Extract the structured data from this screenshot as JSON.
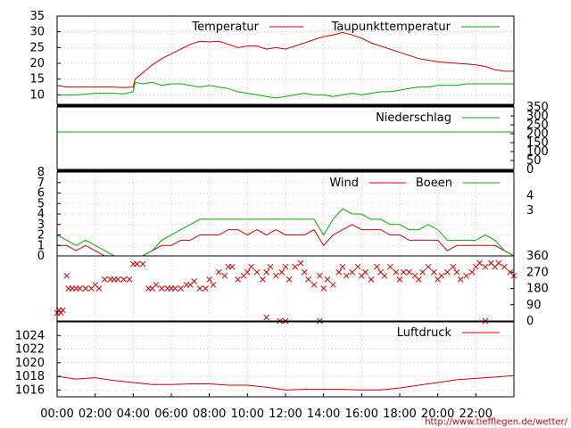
{
  "colors": {
    "red": "#cc0000",
    "green": "#00aa00",
    "grid": "#a0a0a0",
    "frame": "#000000",
    "url": "#cc0000"
  },
  "footer": {
    "url": "http://www.tiefflegen.de/wetter/"
  },
  "x_axis": {
    "ticks": [
      "00:00",
      "02:00",
      "04:00",
      "06:00",
      "08:00",
      "10:00",
      "12:00",
      "14:00",
      "16:00",
      "18:00",
      "20:00",
      "22:00"
    ],
    "hours": [
      0,
      2,
      4,
      6,
      8,
      10,
      12,
      14,
      16,
      18,
      20,
      22
    ],
    "range": [
      0,
      24
    ]
  },
  "chart_data": [
    {
      "id": "temp",
      "type": "line",
      "ylim": [
        7,
        35
      ],
      "yticks": [
        10,
        15,
        20,
        25,
        30,
        35
      ],
      "grid": true,
      "legend_position": "top-right",
      "series": [
        {
          "name": "Temperatur",
          "color": "red",
          "x": [
            0,
            0.5,
            1,
            2,
            3,
            3.5,
            4,
            4.1,
            4.5,
            5,
            5.5,
            6,
            6.5,
            7,
            7.5,
            8,
            8.5,
            9,
            9.5,
            10,
            10.5,
            11,
            11.5,
            12,
            12.5,
            13,
            13.5,
            14,
            14.5,
            15,
            15.5,
            16,
            16.5,
            17,
            17.5,
            18,
            18.5,
            19,
            19.5,
            20,
            20.5,
            21,
            21.5,
            22,
            22.5,
            23,
            23.5,
            24
          ],
          "y": [
            13,
            12.5,
            12.5,
            12.5,
            12.5,
            12.3,
            12.5,
            15,
            17,
            19.5,
            21.5,
            23,
            24.5,
            26,
            27,
            26.8,
            27,
            26,
            25,
            25.5,
            25.5,
            24.5,
            25,
            24.5,
            25.5,
            26.5,
            27.5,
            28.5,
            29,
            29.8,
            29,
            28,
            26.5,
            25.5,
            24.5,
            23.5,
            22.5,
            21.5,
            21,
            20.5,
            20.2,
            20,
            19.8,
            19.5,
            19,
            18,
            17.5,
            17.5
          ]
        },
        {
          "name": "Taupunkttemperatur",
          "color": "green",
          "x": [
            0,
            1,
            2,
            3,
            3.5,
            4,
            4.1,
            4.5,
            5,
            5.5,
            6,
            6.5,
            7,
            7.5,
            8,
            8.5,
            9,
            9.5,
            10,
            10.5,
            11,
            11.5,
            12,
            12.5,
            13,
            13.5,
            14,
            14.5,
            15,
            15.5,
            16,
            16.5,
            17,
            17.5,
            18,
            18.5,
            19,
            19.5,
            20,
            20.5,
            21,
            21.5,
            22,
            22.5,
            23,
            23.5,
            24
          ],
          "y": [
            10,
            10,
            10.5,
            10.5,
            10.3,
            11,
            14,
            13.5,
            14,
            13,
            13.5,
            13.5,
            13,
            12.5,
            13,
            12.5,
            12,
            11,
            10.5,
            10,
            9.5,
            9,
            9.5,
            10,
            10.5,
            10,
            10,
            9.5,
            10,
            10.5,
            10,
            10.5,
            11,
            11,
            11.5,
            12,
            12.5,
            12.5,
            13,
            13,
            13,
            13.5,
            13.5,
            13.5,
            13.5,
            13.5,
            13.5
          ]
        }
      ]
    },
    {
      "id": "rain",
      "type": "line",
      "ylim": [
        0,
        350
      ],
      "yticks": [
        0,
        50,
        100,
        150,
        200,
        250,
        300,
        350
      ],
      "axis_side": "right",
      "legend_position": "top-right",
      "series": [
        {
          "name": "Niederschlag",
          "color": "green",
          "x": [
            0,
            24
          ],
          "y": [
            210,
            210
          ]
        }
      ]
    },
    {
      "id": "wind",
      "type": "line",
      "ylim": [
        0,
        8
      ],
      "yticks": [
        0,
        1,
        2,
        3,
        4,
        5,
        6,
        7,
        8
      ],
      "right_ticks": [
        "3",
        "4"
      ],
      "grid": true,
      "legend_position": "top-right",
      "series": [
        {
          "name": "Wind",
          "color": "red",
          "x": [
            0,
            0.5,
            1,
            1.5,
            2,
            2.5,
            3,
            3.5,
            4,
            4.5,
            5,
            5.5,
            6,
            6.5,
            7,
            7.5,
            8,
            8.5,
            9,
            9.5,
            10,
            10.5,
            11,
            11.5,
            12,
            12.5,
            13,
            13.5,
            14,
            14.5,
            15,
            15.5,
            16,
            16.5,
            17,
            17.5,
            18,
            18.5,
            19,
            19.5,
            20,
            20.5,
            21,
            21.5,
            22,
            22.5,
            23,
            23.5,
            24
          ],
          "y": [
            1,
            1,
            0.5,
            1,
            0.5,
            0,
            0,
            0,
            0,
            0,
            0.5,
            1,
            1,
            1.5,
            1.5,
            2,
            2,
            2,
            2.5,
            2.5,
            2,
            2.5,
            2,
            2.5,
            2,
            2,
            2,
            2.5,
            1,
            2,
            2.5,
            3,
            2.5,
            2.5,
            2.5,
            2,
            2,
            1.5,
            1.5,
            1.5,
            1.5,
            0.5,
            1,
            1,
            1,
            1,
            1,
            0.5,
            0
          ]
        },
        {
          "name": "Boeen",
          "color": "green",
          "x": [
            0,
            0.5,
            1,
            1.5,
            2,
            2.5,
            3,
            3.5,
            4,
            4.5,
            5,
            5.5,
            6,
            6.5,
            7,
            7.5,
            8,
            8.5,
            9,
            9.5,
            10,
            10.5,
            11,
            11.5,
            12,
            12.5,
            13,
            13.5,
            14,
            14.5,
            15,
            15.5,
            16,
            16.5,
            17,
            17.5,
            18,
            18.5,
            19,
            19.5,
            20,
            20.5,
            21,
            21.5,
            22,
            22.5,
            23,
            23.5,
            24
          ],
          "y": [
            2,
            1.5,
            1,
            1.5,
            1,
            0.5,
            0,
            0,
            0,
            0,
            0.5,
            1.5,
            2,
            2.5,
            3,
            3.5,
            3.5,
            3.5,
            3.5,
            3.5,
            3.5,
            3.5,
            3.5,
            3.5,
            3.5,
            3.5,
            3.5,
            3.5,
            2,
            3.5,
            4.5,
            4,
            4,
            3.5,
            3.5,
            3,
            3,
            2.5,
            2.5,
            3,
            2.5,
            1.5,
            1.5,
            1.5,
            1.5,
            2,
            1.5,
            0.5,
            0
          ]
        }
      ]
    },
    {
      "id": "direction",
      "type": "scatter",
      "ylim": [
        0,
        360
      ],
      "yticks": [
        0,
        90,
        180,
        270,
        360
      ],
      "axis_side": "right",
      "marker": "x",
      "series": [
        {
          "color": "red",
          "x": [
            0,
            0.1,
            0.2,
            0.3,
            0.5,
            0.6,
            0.8,
            1,
            1.2,
            1.5,
            1.8,
            2,
            2.2,
            2.5,
            2.8,
            3,
            3.2,
            3.5,
            3.8,
            4,
            4.2,
            4.5,
            4.8,
            5,
            5.2,
            5.5,
            5.8,
            6,
            6.2,
            6.5,
            6.8,
            7,
            7.2,
            7.5,
            7.8,
            8,
            8.2,
            8.5,
            8.8,
            9,
            9.2,
            9.5,
            9.8,
            10,
            10.2,
            10.5,
            10.8,
            11,
            11.2,
            11.5,
            11.8,
            12,
            12.2,
            12.5,
            12.8,
            13,
            13.2,
            13.5,
            13.8,
            14,
            14.2,
            14.5,
            14.8,
            15,
            15.2,
            15.5,
            15.8,
            16,
            16.2,
            16.5,
            16.8,
            17,
            17.2,
            17.5,
            17.8,
            18,
            18.2,
            18.5,
            18.8,
            19,
            19.2,
            19.5,
            19.8,
            20,
            20.2,
            20.5,
            20.8,
            21,
            21.2,
            21.5,
            21.8,
            22,
            22.2,
            22.5,
            22.8,
            23,
            23.2,
            23.5,
            23.8,
            24,
            11,
            11.7,
            12,
            13.8,
            22.5
          ],
          "y": [
            45,
            60,
            45,
            60,
            250,
            180,
            180,
            180,
            180,
            180,
            180,
            200,
            180,
            230,
            230,
            230,
            230,
            230,
            230,
            315,
            315,
            315,
            180,
            180,
            200,
            180,
            180,
            180,
            180,
            180,
            200,
            200,
            220,
            180,
            180,
            230,
            200,
            270,
            250,
            300,
            300,
            230,
            250,
            270,
            300,
            270,
            230,
            270,
            300,
            250,
            270,
            300,
            230,
            300,
            320,
            270,
            230,
            200,
            250,
            180,
            230,
            200,
            270,
            300,
            250,
            270,
            300,
            250,
            270,
            230,
            300,
            270,
            250,
            300,
            270,
            230,
            270,
            270,
            250,
            230,
            270,
            300,
            270,
            230,
            250,
            270,
            300,
            270,
            230,
            250,
            270,
            300,
            320,
            300,
            320,
            300,
            320,
            300,
            270,
            250,
            20,
            0,
            0,
            0,
            0
          ]
        }
      ]
    },
    {
      "id": "pressure",
      "type": "line",
      "ylim": [
        1015,
        1026
      ],
      "yticks": [
        1016,
        1018,
        1020,
        1022,
        1024
      ],
      "grid": true,
      "legend_position": "top-right",
      "series": [
        {
          "name": "Luftdruck",
          "color": "red",
          "x": [
            0,
            1,
            2,
            3,
            4,
            5,
            6,
            7,
            8,
            9,
            10,
            11,
            12,
            13,
            14,
            15,
            16,
            17,
            18,
            19,
            20,
            21,
            22,
            23,
            24
          ],
          "y": [
            1018,
            1017.6,
            1017.8,
            1017.4,
            1017.1,
            1016.8,
            1016.8,
            1016.9,
            1016.9,
            1016.7,
            1016.7,
            1016.4,
            1016,
            1016.1,
            1016.1,
            1016.1,
            1016,
            1016,
            1016.3,
            1016.7,
            1017.1,
            1017.5,
            1017.7,
            1017.9,
            1018.1
          ]
        }
      ]
    }
  ]
}
